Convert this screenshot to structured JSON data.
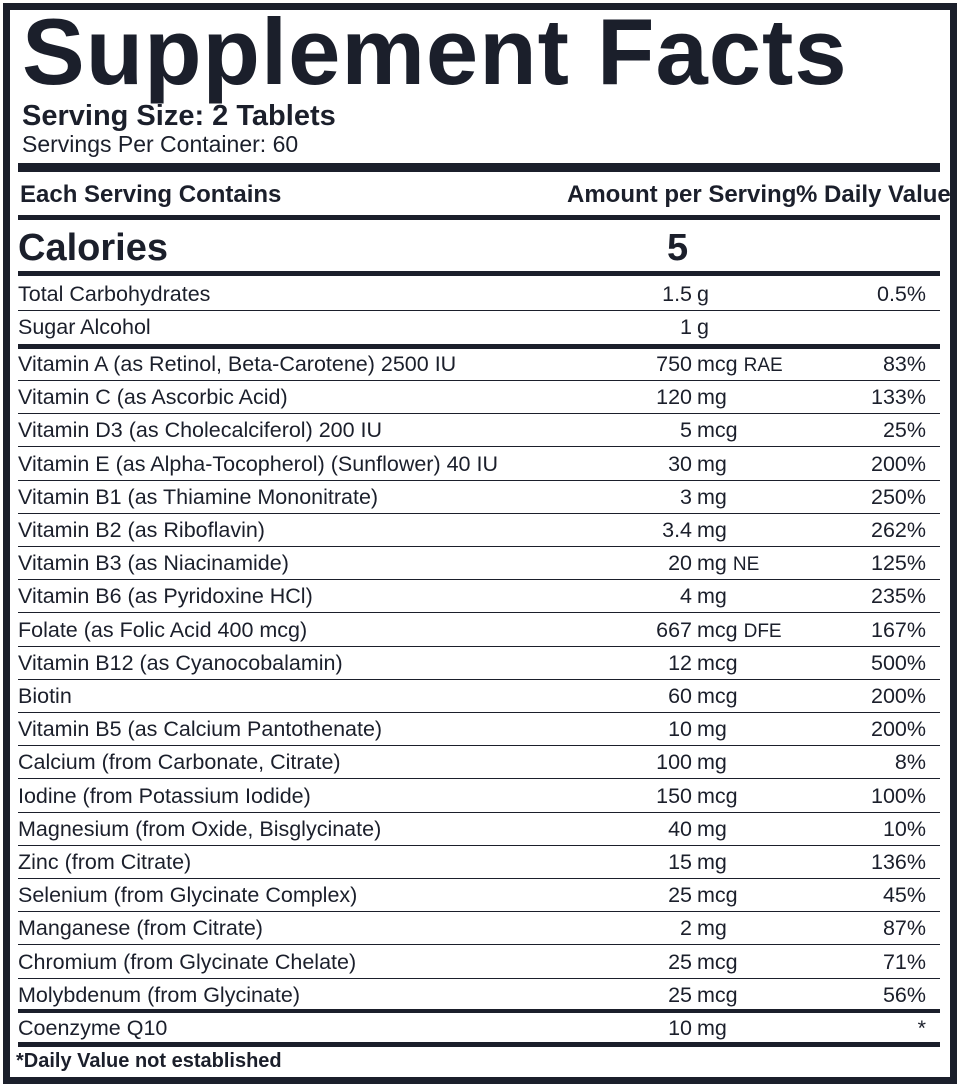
{
  "title": "Supplement Facts",
  "serving_size": "Serving Size: 2 Tablets",
  "servings_per_container": "Servings Per Container: 60",
  "header": {
    "col1": "Each Serving Contains",
    "col2": "Amount per Serving",
    "col3": "% Daily Value"
  },
  "calories": {
    "label": "Calories",
    "value": "5"
  },
  "macros": [
    {
      "name": "Total Carbohydrates",
      "amount": "1.5",
      "unit": "g",
      "unit_sub": "",
      "dv": "0.5%"
    },
    {
      "name": "Sugar Alcohol",
      "amount": "1",
      "unit": "g",
      "unit_sub": "",
      "dv": ""
    }
  ],
  "nutrients": [
    {
      "name": "Vitamin A (as Retinol, Beta-Carotene) 2500 IU",
      "amount": "750",
      "unit": "mcg",
      "unit_sub": "RAE",
      "dv": "83%"
    },
    {
      "name": "Vitamin C (as Ascorbic Acid)",
      "amount": "120",
      "unit": "mg",
      "unit_sub": "",
      "dv": "133%"
    },
    {
      "name": "Vitamin D3 (as Cholecalciferol) 200 IU",
      "amount": "5",
      "unit": "mcg",
      "unit_sub": "",
      "dv": "25%"
    },
    {
      "name": "Vitamin E (as Alpha-Tocopherol) (Sunflower) 40 IU",
      "amount": "30",
      "unit": "mg",
      "unit_sub": "",
      "dv": "200%"
    },
    {
      "name": "Vitamin B1 (as Thiamine Mononitrate)",
      "amount": "3",
      "unit": "mg",
      "unit_sub": "",
      "dv": "250%"
    },
    {
      "name": "Vitamin B2 (as Riboflavin)",
      "amount": "3.4",
      "unit": "mg",
      "unit_sub": "",
      "dv": "262%"
    },
    {
      "name": "Vitamin B3 (as Niacinamide)",
      "amount": "20",
      "unit": "mg",
      "unit_sub": "NE",
      "dv": "125%"
    },
    {
      "name": "Vitamin B6 (as Pyridoxine HCl)",
      "amount": "4",
      "unit": "mg",
      "unit_sub": "",
      "dv": "235%"
    },
    {
      "name": "Folate (as Folic Acid 400 mcg)",
      "amount": "667",
      "unit": "mcg",
      "unit_sub": "DFE",
      "dv": "167%"
    },
    {
      "name": "Vitamin B12 (as Cyanocobalamin)",
      "amount": "12",
      "unit": "mcg",
      "unit_sub": "",
      "dv": "500%"
    },
    {
      "name": "Biotin",
      "amount": "60",
      "unit": "mcg",
      "unit_sub": "",
      "dv": "200%"
    },
    {
      "name": "Vitamin B5 (as Calcium Pantothenate)",
      "amount": "10",
      "unit": "mg",
      "unit_sub": "",
      "dv": "200%"
    },
    {
      "name": "Calcium (from Carbonate, Citrate)",
      "amount": "100",
      "unit": "mg",
      "unit_sub": "",
      "dv": "8%"
    },
    {
      "name": "Iodine (from Potassium Iodide)",
      "amount": "150",
      "unit": "mcg",
      "unit_sub": "",
      "dv": "100%"
    },
    {
      "name": "Magnesium (from Oxide, Bisglycinate)",
      "amount": "40",
      "unit": "mg",
      "unit_sub": "",
      "dv": "10%"
    },
    {
      "name": "Zinc (from Citrate)",
      "amount": "15",
      "unit": "mg",
      "unit_sub": "",
      "dv": "136%"
    },
    {
      "name": "Selenium (from Glycinate Complex)",
      "amount": "25",
      "unit": "mcg",
      "unit_sub": "",
      "dv": "45%"
    },
    {
      "name": "Manganese (from Citrate)",
      "amount": "2",
      "unit": "mg",
      "unit_sub": "",
      "dv": "87%"
    },
    {
      "name": "Chromium (from Glycinate Chelate)",
      "amount": "25",
      "unit": "mcg",
      "unit_sub": "",
      "dv": "71%"
    },
    {
      "name": "Molybdenum (from Glycinate)",
      "amount": "25",
      "unit": "mcg",
      "unit_sub": "",
      "dv": "56%"
    }
  ],
  "other": [
    {
      "name": "Coenzyme Q10",
      "amount": "10",
      "unit": "mg",
      "unit_sub": "",
      "dv": "*"
    }
  ],
  "footnote": "*Daily Value not established"
}
